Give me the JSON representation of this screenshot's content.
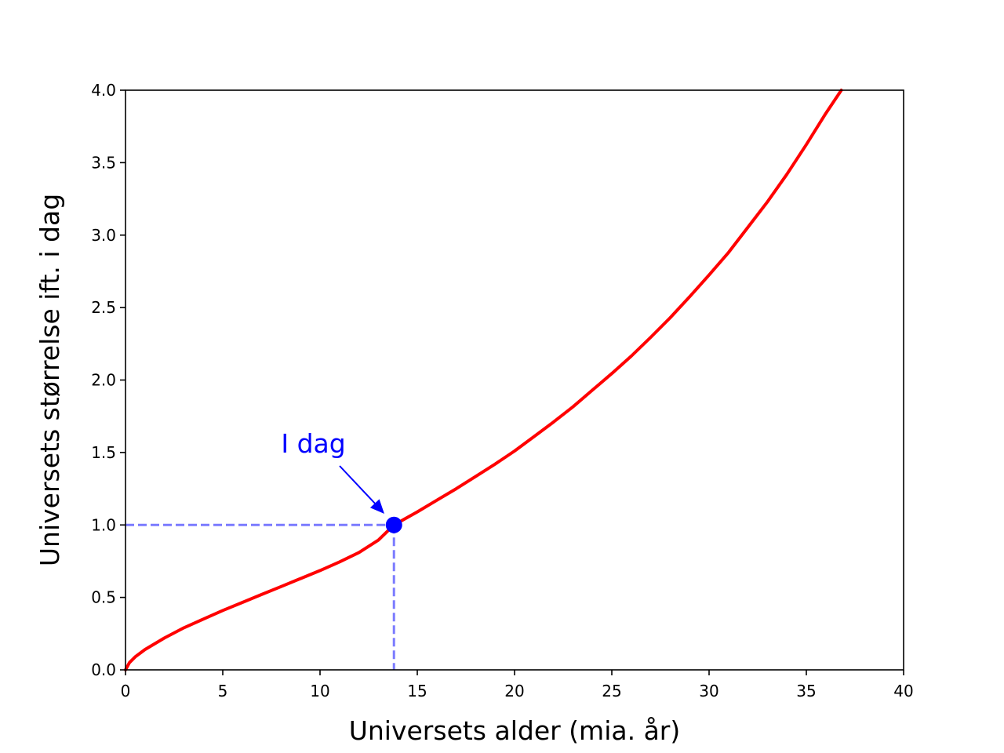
{
  "chart_data": {
    "type": "line",
    "title": "",
    "xlabel": "Universets alder (mia. år)",
    "ylabel": "Universets størrelse ift. i dag",
    "xlim": [
      0,
      40
    ],
    "ylim": [
      0,
      4
    ],
    "x_ticks": [
      0,
      5,
      10,
      15,
      20,
      25,
      30,
      35,
      40
    ],
    "x_tick_labels": [
      "0",
      "5",
      "10",
      "15",
      "20",
      "25",
      "30",
      "35",
      "40"
    ],
    "y_ticks": [
      0,
      0.5,
      1,
      1.5,
      2,
      2.5,
      3,
      3.5,
      4
    ],
    "y_tick_labels": [
      "0.0",
      "0.5",
      "1.0",
      "1.5",
      "2.0",
      "2.5",
      "3.0",
      "3.5",
      "4.0"
    ],
    "grid": false,
    "series": [
      {
        "color": "#ff0000",
        "x": [
          0,
          0.2,
          0.5,
          1,
          2,
          3,
          4,
          5,
          6,
          7,
          8,
          9,
          10,
          11,
          12,
          13,
          13.8,
          15,
          16,
          17,
          18,
          19,
          20,
          21,
          22,
          23,
          24,
          25,
          26,
          27,
          28,
          29,
          30,
          31,
          32,
          33,
          34,
          35,
          36,
          36.8
        ],
        "y": [
          0,
          0.05,
          0.09,
          0.14,
          0.22,
          0.29,
          0.35,
          0.41,
          0.465,
          0.52,
          0.575,
          0.63,
          0.685,
          0.745,
          0.81,
          0.895,
          1.0,
          1.09,
          1.17,
          1.25,
          1.335,
          1.42,
          1.51,
          1.61,
          1.71,
          1.815,
          1.93,
          2.045,
          2.165,
          2.295,
          2.43,
          2.575,
          2.725,
          2.88,
          3.055,
          3.23,
          3.42,
          3.625,
          3.84,
          4.0
        ]
      }
    ],
    "annotation": {
      "text": "I dag",
      "point": [
        13.8,
        1.0
      ],
      "text_position": [
        8,
        1.5
      ],
      "color": "#0000ff",
      "reference_line_color": "#7b7bff"
    }
  }
}
